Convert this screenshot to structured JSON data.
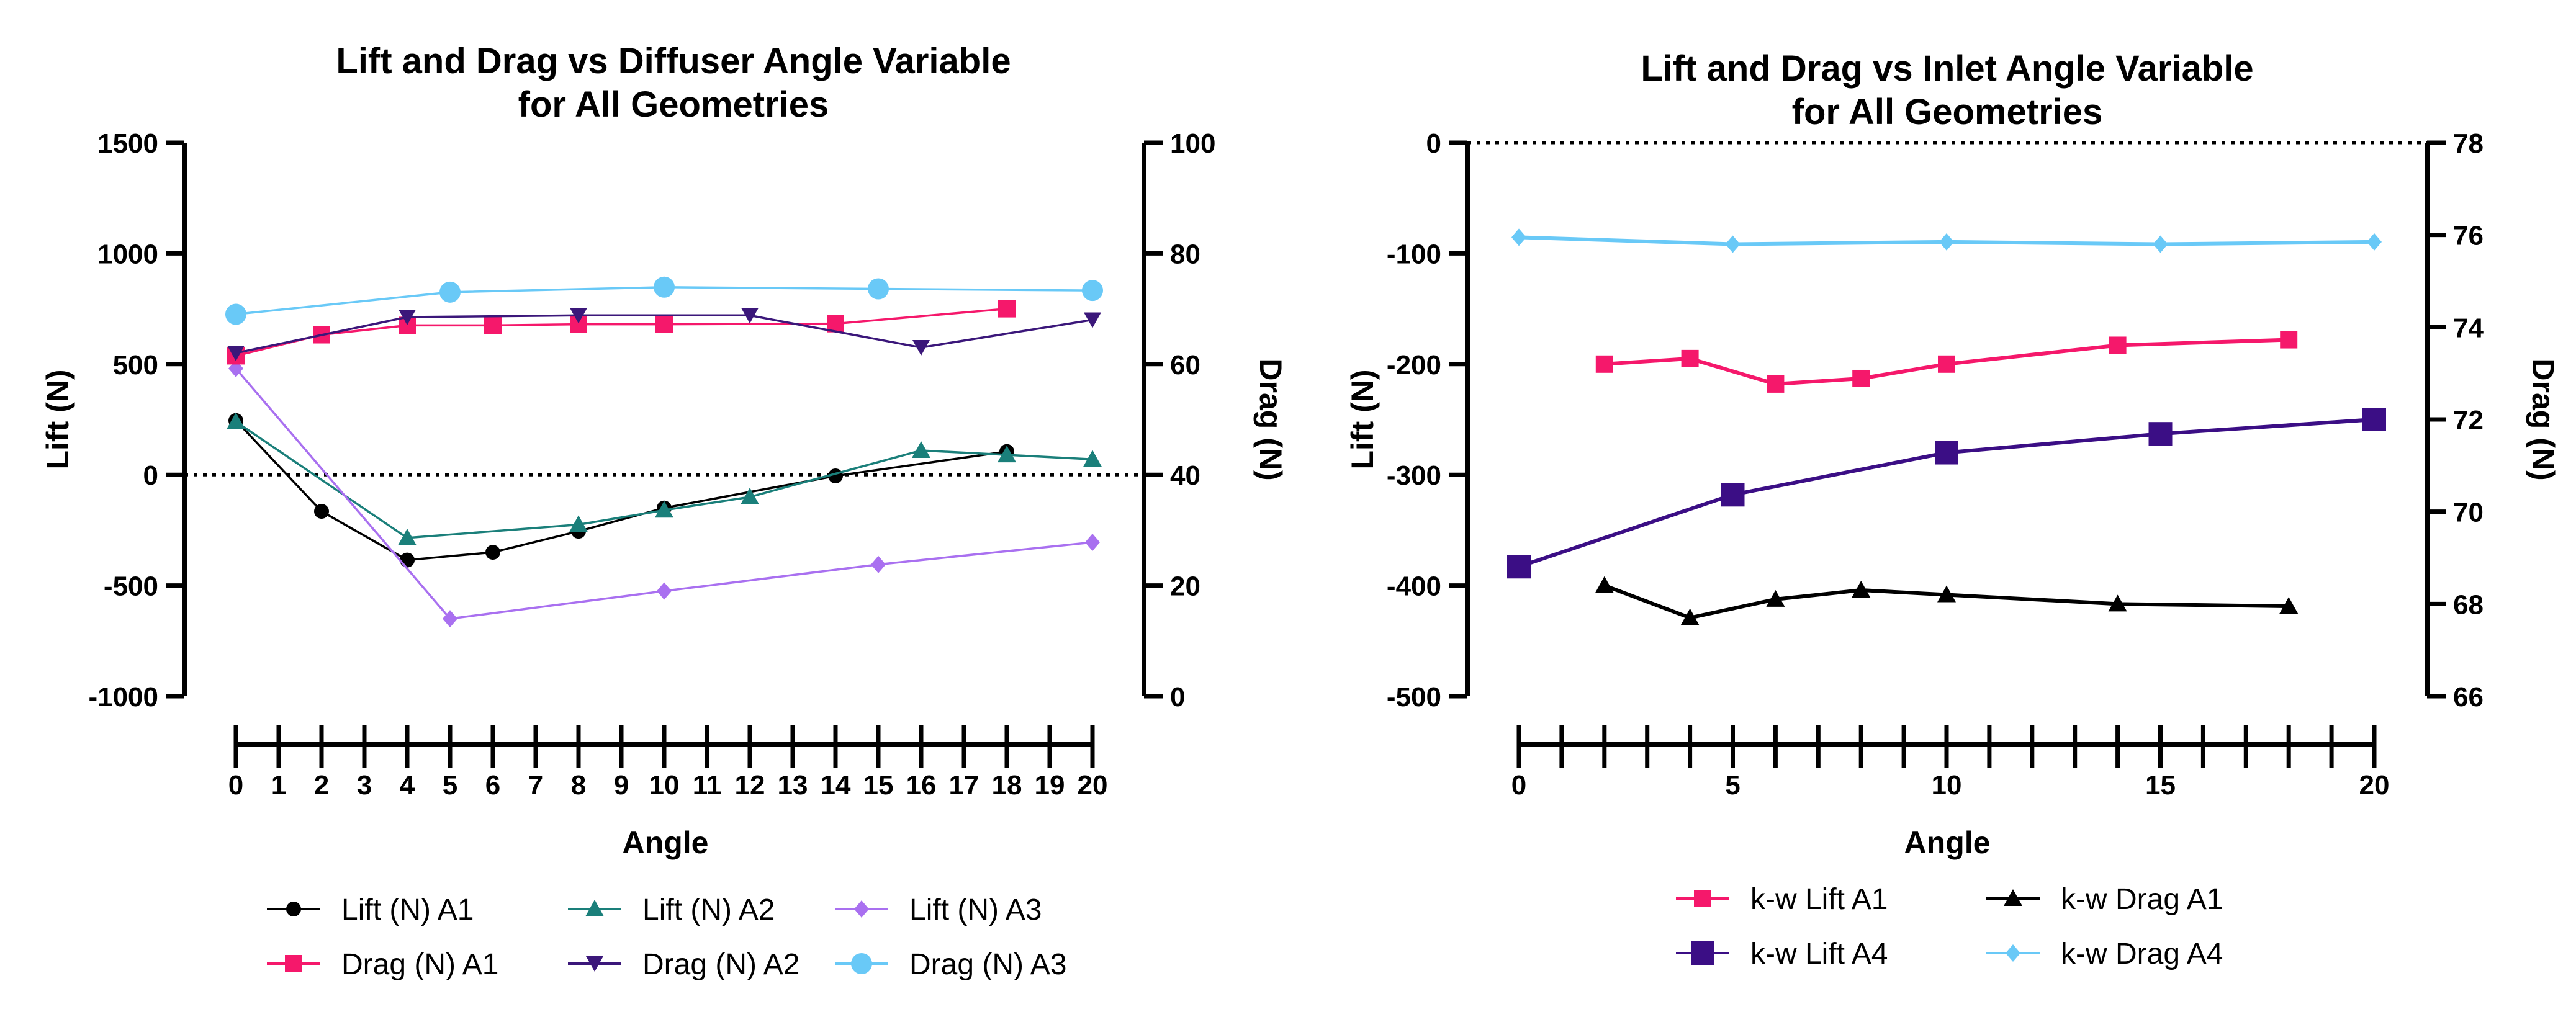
{
  "chart_data": [
    {
      "type": "line",
      "title_lines": [
        "Lift and Drag vs Diffuser Angle Variable",
        "for All Geometries"
      ],
      "xlabel": "Angle",
      "ylabel_left": "Lift (N)",
      "ylabel_right": "Drag (N)",
      "xlim": [
        0,
        20
      ],
      "ylim_left": [
        -1000,
        1500
      ],
      "ylim_right": [
        0,
        100
      ],
      "x_ticks": [
        0,
        1,
        2,
        3,
        4,
        5,
        6,
        7,
        8,
        9,
        10,
        11,
        12,
        13,
        14,
        15,
        16,
        17,
        18,
        19,
        20
      ],
      "y_left_ticks": [
        -1000,
        -500,
        0,
        500,
        1000,
        1500
      ],
      "y_right_ticks": [
        0,
        20,
        40,
        60,
        80,
        100
      ],
      "zero_line": "dotted",
      "legend_position": "bottom",
      "series": [
        {
          "name": "Lift (N) A1",
          "axis": "left",
          "color": "#000000",
          "marker": "circle",
          "x": [
            0,
            2,
            4,
            6,
            8,
            10,
            14,
            18
          ],
          "y": [
            245,
            -165,
            -385,
            -350,
            -255,
            -150,
            -5,
            105
          ]
        },
        {
          "name": "Lift (N) A2",
          "axis": "left",
          "color": "#1a7f7a",
          "marker": "triangle-up",
          "x": [
            0,
            4,
            8,
            10,
            12,
            16,
            18,
            20
          ],
          "y": [
            240,
            -285,
            -225,
            -160,
            -100,
            110,
            90,
            70
          ]
        },
        {
          "name": "Lift (N) A3",
          "axis": "left",
          "color": "#a970f0",
          "marker": "diamond",
          "x": [
            0,
            5,
            10,
            15,
            20
          ],
          "y": [
            480,
            -650,
            -525,
            -405,
            -305
          ]
        },
        {
          "name": "Drag (N) A1",
          "axis": "right",
          "color": "#f5186b",
          "marker": "square",
          "x": [
            0,
            2,
            4,
            6,
            8,
            10,
            14,
            18
          ],
          "y": [
            61.5,
            65.3,
            67,
            67,
            67.2,
            67.2,
            67.3,
            70
          ]
        },
        {
          "name": "Drag (N) A2",
          "axis": "right",
          "color": "#3b177a",
          "marker": "triangle-down",
          "x": [
            0,
            4,
            8,
            12,
            16,
            20
          ],
          "y": [
            62,
            68.5,
            68.8,
            68.8,
            63,
            68
          ]
        },
        {
          "name": "Drag (N) A3",
          "axis": "right",
          "color": "#69c9f7",
          "marker": "circle-large",
          "x": [
            0,
            5,
            10,
            15,
            20
          ],
          "y": [
            69,
            73,
            73.9,
            73.6,
            73.3
          ]
        }
      ]
    },
    {
      "type": "line",
      "title_lines": [
        "Lift and Drag vs Inlet Angle Variable",
        "for All Geometries"
      ],
      "xlabel": "Angle",
      "ylabel_left": "Lift (N)",
      "ylabel_right": "Drag (N)",
      "xlim": [
        0,
        20
      ],
      "ylim_left": [
        -500,
        0
      ],
      "ylim_right": [
        66,
        78
      ],
      "x_ticks": [
        0,
        5,
        10,
        15,
        20
      ],
      "y_left_ticks": [
        -500,
        -400,
        -300,
        -200,
        -100,
        0
      ],
      "y_right_ticks": [
        66,
        68,
        70,
        72,
        74,
        76,
        78
      ],
      "zero_line": "dotted",
      "legend_position": "bottom",
      "series": [
        {
          "name": "k-w Lift A1",
          "axis": "left",
          "color": "#f5186b",
          "marker": "square",
          "x": [
            2,
            4,
            6,
            8,
            10,
            14,
            18
          ],
          "y": [
            -200,
            -195,
            -218,
            -213,
            -200,
            -183,
            -178
          ]
        },
        {
          "name": "k-w Drag A1",
          "axis": "right",
          "color": "#000000",
          "marker": "triangle-up",
          "x": [
            2,
            4,
            6,
            8,
            10,
            14,
            18
          ],
          "y": [
            68.4,
            67.7,
            68.1,
            68.3,
            68.2,
            68,
            67.95
          ]
        },
        {
          "name": "k-w Lift A4",
          "axis": "left",
          "color": "#3b0e85",
          "marker": "square-large",
          "x": [
            0,
            5,
            10,
            15,
            20
          ],
          "y": [
            -383,
            -318,
            -280,
            -263,
            -250
          ]
        },
        {
          "name": "k-w Drag A4",
          "axis": "right",
          "color": "#69c9f7",
          "marker": "diamond",
          "x": [
            0,
            5,
            10,
            15,
            20
          ],
          "y": [
            75.95,
            75.8,
            75.85,
            75.8,
            75.85
          ]
        }
      ]
    }
  ]
}
